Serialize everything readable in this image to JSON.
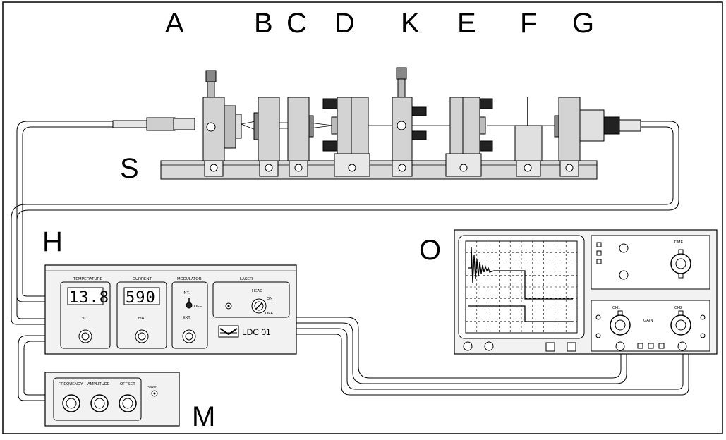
{
  "letters": {
    "A": "A",
    "B": "B",
    "C": "C",
    "D": "D",
    "K": "K",
    "E": "E",
    "F": "F",
    "G": "G",
    "S": "S",
    "H": "H",
    "O": "O",
    "M": "M"
  },
  "controller": {
    "temperature_label": "TEMPERATURE",
    "temperature_value": "13.8",
    "temperature_unit": "°C",
    "current_label": "CURRENT",
    "current_value": "590",
    "current_unit": "mA",
    "modulator_label": "MODULATOR",
    "mod_int": "INT.",
    "mod_off": "OFF",
    "mod_ext": "EXT.",
    "laser_label": "LASER",
    "head_label": "HEAD",
    "on_label": "ON",
    "off_label": "OFF",
    "model": "LDC 01"
  },
  "modulator": {
    "frequency": "FREQUENCY",
    "amplitude": "AMPLITUDE",
    "offset": "OFFSET",
    "power": "POWER"
  },
  "scope": {
    "time_label": "TIME",
    "ch1": "CH1",
    "ch2": "CH2",
    "gain": "GAIN"
  }
}
